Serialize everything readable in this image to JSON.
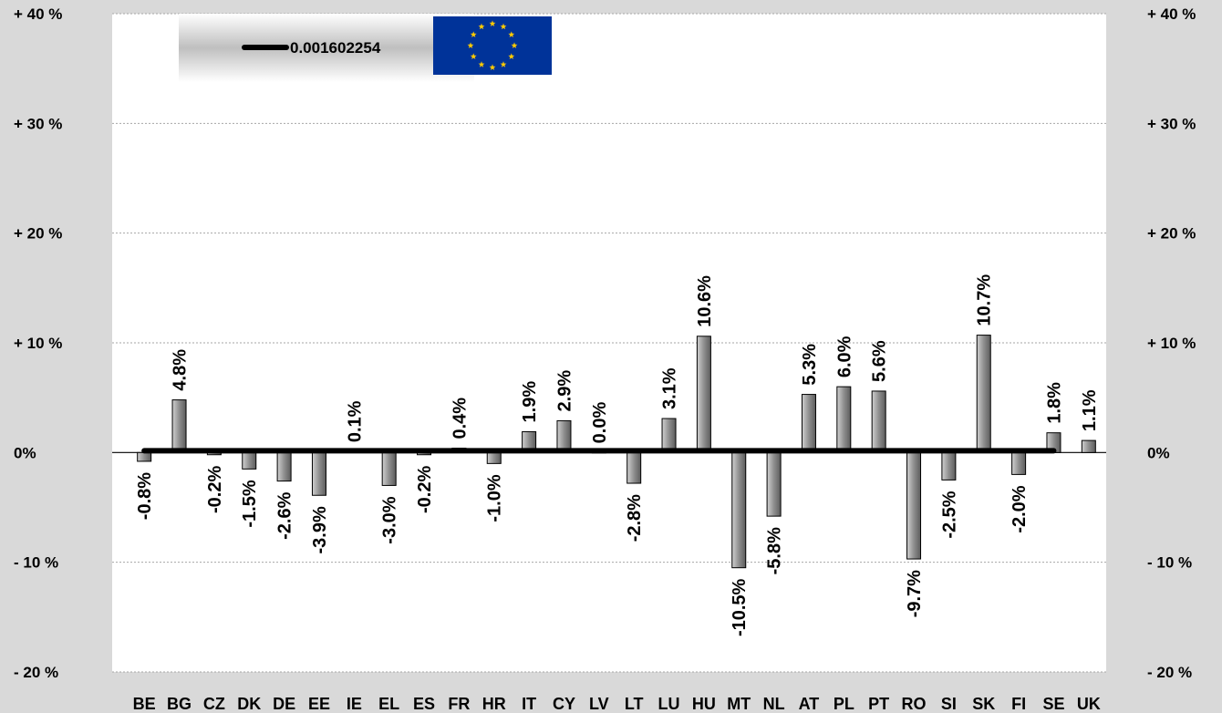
{
  "chart_data": {
    "type": "bar",
    "categories": [
      "BE",
      "BG",
      "CZ",
      "DK",
      "DE",
      "EE",
      "IE",
      "EL",
      "ES",
      "FR",
      "HR",
      "IT",
      "CY",
      "LV",
      "LT",
      "LU",
      "HU",
      "MT",
      "NL",
      "AT",
      "PL",
      "PT",
      "RO",
      "SI",
      "SK",
      "FI",
      "SE",
      "UK"
    ],
    "values": [
      -0.8,
      4.8,
      -0.2,
      -1.5,
      -2.6,
      -3.9,
      0.1,
      -3.0,
      -0.2,
      0.4,
      -1.0,
      1.9,
      2.9,
      0.0,
      -2.8,
      3.1,
      10.6,
      -10.5,
      -5.8,
      5.3,
      6.0,
      5.6,
      -9.7,
      -2.5,
      10.7,
      -2.0,
      1.8,
      1.1
    ],
    "data_labels": [
      "-0.8%",
      "4.8%",
      "-0.2%",
      "-1.5%",
      "-2.6%",
      "-3.9%",
      "0.1%",
      "-3.0%",
      "-0.2%",
      "0.4%",
      "-1.0%",
      "1.9%",
      "2.9%",
      "0.0%",
      "-2.8%",
      "3.1%",
      "10.6%",
      "-10.5%",
      "-5.8%",
      "5.3%",
      "6.0%",
      "5.6%",
      "-9.7%",
      "-2.5%",
      "10.7%",
      "-2.0%",
      "1.8%",
      "1.1%"
    ],
    "reference_line": {
      "value": 0.16,
      "label": "0.001602254"
    },
    "ylim": [
      -20,
      40
    ],
    "yticks": [
      40,
      30,
      20,
      10,
      0,
      -10,
      -20
    ],
    "ytick_labels": [
      "+ 40 %",
      "+ 30 %",
      "+ 20 %",
      "+ 10 %",
      "0%",
      "- 10 %",
      "- 20 %"
    ],
    "grid": true,
    "legend_position": "top-left",
    "legend_icon": "eu-flag-icon",
    "colors": {
      "background": "#d9d9d9",
      "plot_background": "#ffffff",
      "bar_fill": "#8c8c8c",
      "bar_stroke": "#000000",
      "reference_line": "#000000",
      "flag_blue": "#003399",
      "flag_star": "#ffcc00"
    }
  }
}
